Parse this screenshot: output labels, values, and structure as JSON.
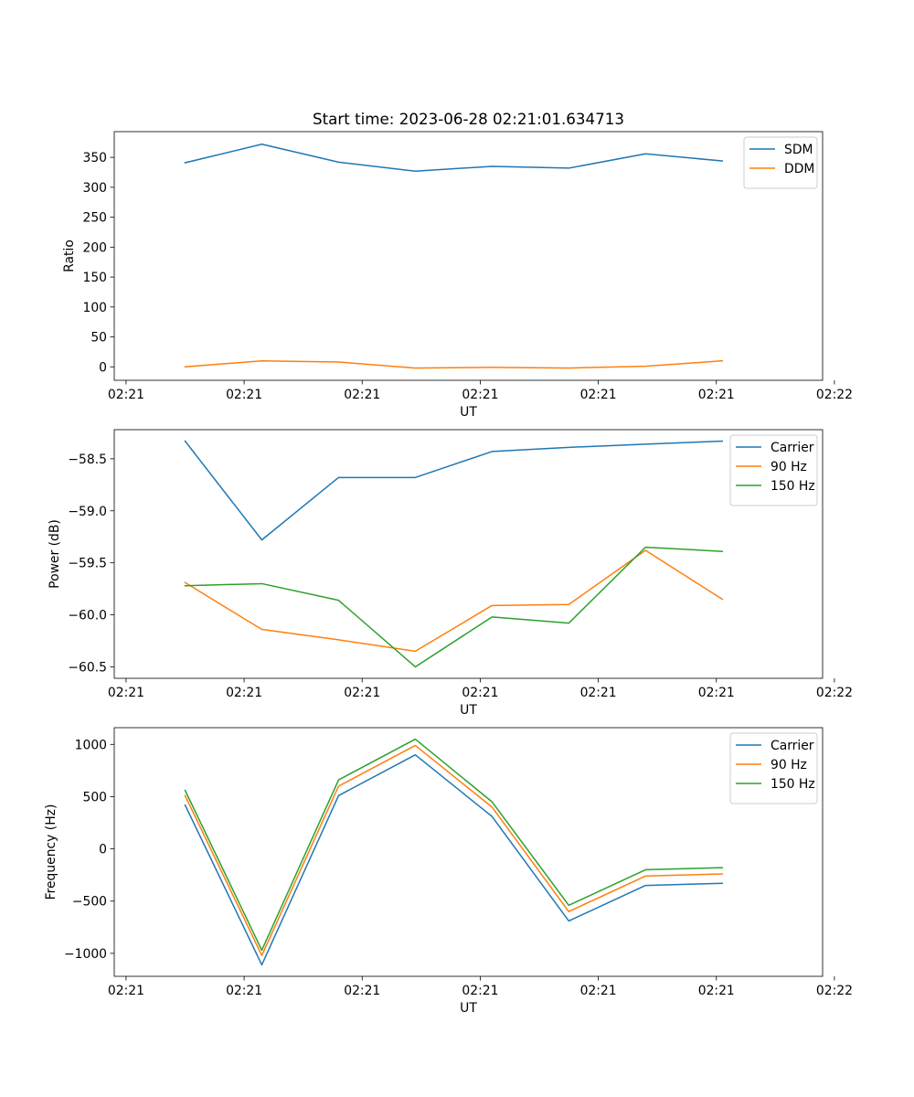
{
  "figure": {
    "title": "Start time: 2023-06-28 02:21:01.634713"
  },
  "chart_data": [
    {
      "type": "line",
      "title": "Start time: 2023-06-28 02:21:01.634713",
      "xlabel": "UT",
      "ylabel": "Ratio",
      "x_tick_labels": [
        "02:21",
        "02:21",
        "02:21",
        "02:21",
        "02:21",
        "02:21",
        "02:22"
      ],
      "xlim": [
        -0.1,
        5.9
      ],
      "x_ticks": [
        0,
        1,
        2,
        3,
        4,
        5,
        6
      ],
      "ylim": [
        -22.5,
        393
      ],
      "y_ticks": [
        0,
        50,
        100,
        150,
        200,
        250,
        300,
        350
      ],
      "y_tick_labels": [
        "0",
        "50",
        "100",
        "150",
        "200",
        "250",
        "300",
        "350"
      ],
      "x": [
        0.5,
        1.15,
        1.8,
        2.45,
        3.1,
        3.75,
        4.4,
        5.05
      ],
      "legend_position": "top-right",
      "grid": false,
      "series": [
        {
          "name": "SDM",
          "color": "#1f77b4",
          "values": [
            341,
            372,
            342,
            327,
            335,
            332,
            356,
            344
          ]
        },
        {
          "name": "DDM",
          "color": "#ff7f0e",
          "values": [
            0,
            10,
            8,
            -2,
            -1,
            -2,
            1,
            10
          ]
        }
      ]
    },
    {
      "type": "line",
      "title": "",
      "xlabel": "UT",
      "ylabel": "Power (dB)",
      "x_tick_labels": [
        "02:21",
        "02:21",
        "02:21",
        "02:21",
        "02:21",
        "02:21",
        "02:22"
      ],
      "xlim": [
        -0.1,
        5.9
      ],
      "x_ticks": [
        0,
        1,
        2,
        3,
        4,
        5,
        6
      ],
      "ylim": [
        -60.61,
        -58.22
      ],
      "y_ticks": [
        -60.5,
        -60.0,
        -59.5,
        -59.0,
        -58.5
      ],
      "y_tick_labels": [
        "−60.5",
        "−60.0",
        "−59.5",
        "−59.0",
        "−58.5"
      ],
      "x": [
        0.5,
        1.15,
        1.8,
        2.45,
        3.1,
        3.75,
        4.4,
        5.05
      ],
      "legend_position": "top-right",
      "grid": false,
      "series": [
        {
          "name": "Carrier",
          "color": "#1f77b4",
          "values": [
            -58.33,
            -59.28,
            -58.68,
            -58.68,
            -58.43,
            -58.39,
            -58.36,
            -58.33
          ]
        },
        {
          "name": "90 Hz",
          "color": "#ff7f0e",
          "values": [
            -59.69,
            -60.14,
            -60.24,
            -60.35,
            -59.91,
            -59.9,
            -59.38,
            -59.85
          ]
        },
        {
          "name": "150 Hz",
          "color": "#2ca02c",
          "values": [
            -59.72,
            -59.7,
            -59.86,
            -60.5,
            -60.02,
            -60.08,
            -59.35,
            -59.39
          ]
        }
      ]
    },
    {
      "type": "line",
      "title": "",
      "xlabel": "UT",
      "ylabel": "Frequency (Hz)",
      "x_tick_labels": [
        "02:21",
        "02:21",
        "02:21",
        "02:21",
        "02:21",
        "02:21",
        "02:22"
      ],
      "xlim": [
        -0.1,
        5.9
      ],
      "x_ticks": [
        0,
        1,
        2,
        3,
        4,
        5,
        6
      ],
      "ylim": [
        -1220,
        1160
      ],
      "y_ticks": [
        -1000,
        -500,
        0,
        500,
        1000
      ],
      "y_tick_labels": [
        "−1000",
        "−500",
        "0",
        "500",
        "1000"
      ],
      "x": [
        0.5,
        1.15,
        1.8,
        2.45,
        3.1,
        3.75,
        4.4,
        5.05
      ],
      "legend_position": "top-right",
      "grid": false,
      "series": [
        {
          "name": "Carrier",
          "color": "#1f77b4",
          "values": [
            420,
            -1110,
            510,
            900,
            310,
            -690,
            -350,
            -330
          ]
        },
        {
          "name": "90 Hz",
          "color": "#ff7f0e",
          "values": [
            510,
            -1020,
            600,
            990,
            400,
            -600,
            -260,
            -240
          ]
        },
        {
          "name": "150 Hz",
          "color": "#2ca02c",
          "values": [
            560,
            -970,
            660,
            1050,
            450,
            -540,
            -200,
            -180
          ]
        }
      ]
    }
  ]
}
